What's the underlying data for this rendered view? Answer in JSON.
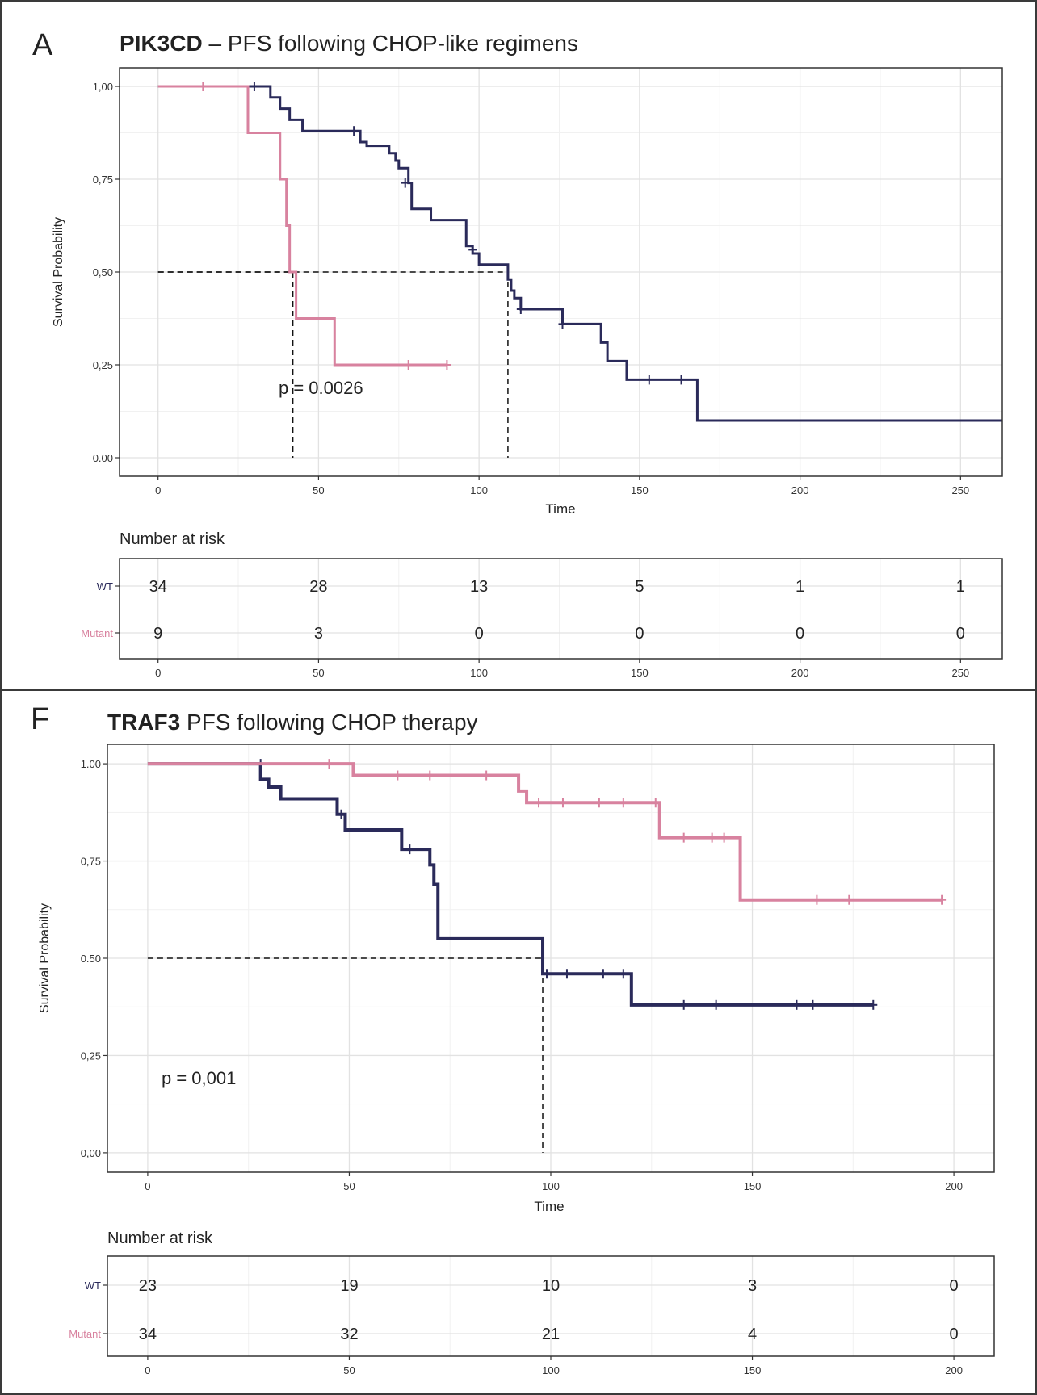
{
  "chart_data": [
    {
      "type": "line",
      "panel_letter": "A",
      "title_bold": "PIK3CD",
      "title_rest": " – PFS following CHOP-like regimens",
      "xlabel": "Time",
      "ylabel": "Survival Probability",
      "xlim": [
        -12,
        263
      ],
      "ylim": [
        -0.05,
        1.05
      ],
      "x_ticks": [
        0,
        50,
        100,
        150,
        200,
        250
      ],
      "y_ticks": [
        0,
        0.25,
        0.5,
        0.75,
        1
      ],
      "y_tick_labels": [
        "0.00",
        "0,25",
        "0,50",
        "0,75",
        "1,00"
      ],
      "grid": true,
      "pvalue": "p = 0.0026",
      "colors": {
        "WT": "#2a2a5a",
        "Mutant": "#d8829f"
      },
      "series": [
        {
          "name": "WT",
          "x": [
            0,
            35,
            38,
            41,
            45,
            63,
            65,
            72,
            74,
            75,
            78,
            79,
            85,
            96,
            98,
            100,
            109,
            110,
            111,
            113,
            126,
            138,
            140,
            146,
            152,
            168,
            263
          ],
          "y": [
            1.0,
            0.97,
            0.94,
            0.91,
            0.88,
            0.85,
            0.84,
            0.82,
            0.8,
            0.78,
            0.74,
            0.67,
            0.64,
            0.57,
            0.55,
            0.52,
            0.48,
            0.45,
            0.43,
            0.4,
            0.36,
            0.31,
            0.26,
            0.21,
            0.21,
            0.1,
            0.1
          ],
          "censors": [
            [
              30,
              1.0
            ],
            [
              61,
              0.88
            ],
            [
              77,
              0.74
            ],
            [
              98,
              0.56
            ],
            [
              113,
              0.4
            ],
            [
              126,
              0.36
            ],
            [
              153,
              0.21
            ],
            [
              163,
              0.21
            ]
          ],
          "width": 3
        },
        {
          "name": "Mutant",
          "x": [
            0,
            28,
            38,
            40,
            41,
            43,
            55,
            90
          ],
          "y": [
            1.0,
            0.875,
            0.75,
            0.625,
            0.5,
            0.375,
            0.25,
            0.25
          ],
          "censors": [
            [
              14,
              1.0
            ],
            [
              78,
              0.25
            ],
            [
              90,
              0.25
            ]
          ],
          "width": 3
        }
      ],
      "median_lines": [
        [
          42,
          0.5
        ],
        [
          109,
          0.5
        ]
      ],
      "risk_table": {
        "header": "Number at risk",
        "times": [
          0,
          50,
          100,
          150,
          200,
          250
        ],
        "rows": [
          {
            "label": "WT",
            "values": [
              "34",
              "28",
              "13",
              "5",
              "1",
              "1"
            ]
          },
          {
            "label": "Mutant",
            "values": [
              "9",
              "3",
              "0",
              "0",
              "0",
              "0"
            ]
          }
        ]
      }
    },
    {
      "type": "line",
      "panel_letter": "F",
      "title_bold": "TRAF3",
      "title_rest": " PFS following CHOP therapy",
      "xlabel": "Time",
      "ylabel": "Survival Probability",
      "xlim": [
        -10,
        210
      ],
      "ylim": [
        -0.05,
        1.05
      ],
      "x_ticks": [
        0,
        50,
        100,
        150,
        200
      ],
      "y_ticks": [
        0,
        0.25,
        0.5,
        0.75,
        1
      ],
      "y_tick_labels": [
        "0,00",
        "0,25",
        "0.50",
        "0,75",
        "1.00"
      ],
      "grid": true,
      "pvalue": "p = 0,001",
      "colors": {
        "WT": "#2a2a5a",
        "Mutant": "#d8829f"
      },
      "series": [
        {
          "name": "WT",
          "x": [
            0,
            28,
            30,
            33,
            47,
            49,
            63,
            70,
            71,
            72,
            98,
            107,
            120,
            180
          ],
          "y": [
            1.0,
            0.96,
            0.94,
            0.91,
            0.87,
            0.83,
            0.78,
            0.74,
            0.69,
            0.55,
            0.46,
            0.46,
            0.38,
            0.38
          ],
          "censors": [
            [
              28,
              1.0
            ],
            [
              48,
              0.87
            ],
            [
              65,
              0.78
            ],
            [
              99,
              0.46
            ],
            [
              104,
              0.46
            ],
            [
              113,
              0.46
            ],
            [
              118,
              0.46
            ],
            [
              133,
              0.38
            ],
            [
              141,
              0.38
            ],
            [
              161,
              0.38
            ],
            [
              165,
              0.38
            ],
            [
              180,
              0.38
            ]
          ],
          "width": 4
        },
        {
          "name": "Mutant",
          "x": [
            0,
            51,
            92,
            94,
            97,
            127,
            147,
            197
          ],
          "y": [
            1.0,
            0.97,
            0.93,
            0.9,
            0.9,
            0.81,
            0.65,
            0.65
          ],
          "censors": [
            [
              45,
              1.0
            ],
            [
              62,
              0.97
            ],
            [
              70,
              0.97
            ],
            [
              84,
              0.97
            ],
            [
              97,
              0.9
            ],
            [
              103,
              0.9
            ],
            [
              112,
              0.9
            ],
            [
              118,
              0.9
            ],
            [
              126,
              0.9
            ],
            [
              133,
              0.81
            ],
            [
              140,
              0.81
            ],
            [
              143,
              0.81
            ],
            [
              166,
              0.65
            ],
            [
              174,
              0.65
            ],
            [
              197,
              0.65
            ]
          ],
          "width": 4
        }
      ],
      "median_lines": [
        [
          98,
          0.5
        ]
      ],
      "risk_table": {
        "header": "Number at risk",
        "times": [
          0,
          50,
          100,
          150,
          200
        ],
        "rows": [
          {
            "label": "WT",
            "values": [
              "23",
              "19",
              "10",
              "3",
              "0"
            ]
          },
          {
            "label": "Mutant",
            "values": [
              "34",
              "32",
              "21",
              "4",
              "0"
            ]
          }
        ]
      }
    }
  ]
}
